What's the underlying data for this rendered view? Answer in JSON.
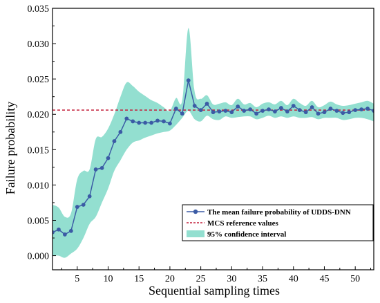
{
  "chart_data": {
    "type": "line",
    "title": "",
    "xlabel": "Sequential sampling times",
    "ylabel": "Failure probability",
    "xlim": [
      1,
      53
    ],
    "ylim": [
      -0.002,
      0.035
    ],
    "xticks": [
      5,
      10,
      15,
      20,
      25,
      30,
      35,
      40,
      45,
      50
    ],
    "xtick_labels": [
      "5",
      "10",
      "15",
      "20",
      "25",
      "30",
      "35",
      "40",
      "45",
      "50"
    ],
    "yticks": [
      0.0,
      0.005,
      0.01,
      0.015,
      0.02,
      0.025,
      0.03,
      0.035
    ],
    "ytick_labels": [
      "0.000",
      "0.005",
      "0.010",
      "0.015",
      "0.020",
      "0.025",
      "0.030",
      "0.035"
    ],
    "grid": false,
    "legend_position": "bottom-right",
    "reference": {
      "name": "MCS reference values",
      "value": 0.0206,
      "color": "#c41e3a"
    },
    "series": [
      {
        "name": "The mean failure probability of UDDS-DNN",
        "color": "#3b5ba5",
        "x": [
          1,
          2,
          3,
          4,
          5,
          6,
          7,
          8,
          9,
          10,
          11,
          12,
          13,
          14,
          15,
          16,
          17,
          18,
          19,
          20,
          21,
          22,
          23,
          24,
          25,
          26,
          27,
          28,
          29,
          30,
          31,
          32,
          33,
          34,
          35,
          36,
          37,
          38,
          39,
          40,
          41,
          42,
          43,
          44,
          45,
          46,
          47,
          48,
          49,
          50,
          51,
          52,
          53
        ],
        "y": [
          0.0033,
          0.0037,
          0.003,
          0.0035,
          0.0069,
          0.0072,
          0.0084,
          0.0122,
          0.0124,
          0.0138,
          0.0162,
          0.0175,
          0.0194,
          0.019,
          0.0188,
          0.0188,
          0.0188,
          0.0191,
          0.019,
          0.0187,
          0.0208,
          0.0201,
          0.0248,
          0.0212,
          0.0206,
          0.0215,
          0.0203,
          0.0204,
          0.0205,
          0.0203,
          0.0211,
          0.0205,
          0.0207,
          0.0201,
          0.0205,
          0.0207,
          0.0204,
          0.0209,
          0.0204,
          0.0212,
          0.0206,
          0.0203,
          0.021,
          0.0201,
          0.0203,
          0.0208,
          0.0205,
          0.0202,
          0.0203,
          0.0206,
          0.0207,
          0.0208,
          0.0205
        ]
      }
    ],
    "band": {
      "name": "95% confidence interval",
      "color": "#93dfd0",
      "x": [
        1,
        2,
        3,
        4,
        5,
        6,
        7,
        8,
        9,
        10,
        11,
        12,
        13,
        14,
        15,
        16,
        17,
        18,
        19,
        20,
        21,
        22,
        23,
        24,
        25,
        26,
        27,
        28,
        29,
        30,
        31,
        32,
        33,
        34,
        35,
        36,
        37,
        38,
        39,
        40,
        41,
        42,
        43,
        44,
        45,
        46,
        47,
        48,
        49,
        50,
        51,
        52,
        53
      ],
      "lower": [
        0.0,
        0.0,
        -0.0003,
        0.0003,
        0.001,
        0.0025,
        0.0045,
        0.0055,
        0.0075,
        0.0095,
        0.012,
        0.0135,
        0.015,
        0.016,
        0.0163,
        0.0167,
        0.017,
        0.0173,
        0.0175,
        0.0177,
        0.0185,
        0.0195,
        0.0205,
        0.0193,
        0.019,
        0.0198,
        0.0193,
        0.0192,
        0.0197,
        0.0195,
        0.0196,
        0.0197,
        0.0197,
        0.0193,
        0.0195,
        0.0198,
        0.0195,
        0.0197,
        0.0195,
        0.0197,
        0.0195,
        0.0195,
        0.0196,
        0.0193,
        0.0195,
        0.0195,
        0.0195,
        0.0192,
        0.0193,
        0.0195,
        0.0195,
        0.0193,
        0.019
      ],
      "upper": [
        0.0072,
        0.0068,
        0.0055,
        0.006,
        0.0108,
        0.012,
        0.0122,
        0.0165,
        0.0168,
        0.018,
        0.02,
        0.0225,
        0.0245,
        0.024,
        0.0232,
        0.0226,
        0.022,
        0.0216,
        0.021,
        0.0205,
        0.0223,
        0.022,
        0.0322,
        0.0232,
        0.0222,
        0.0227,
        0.0214,
        0.0215,
        0.0217,
        0.0213,
        0.0222,
        0.0214,
        0.0216,
        0.021,
        0.0215,
        0.0217,
        0.0214,
        0.0219,
        0.0213,
        0.0222,
        0.0216,
        0.0212,
        0.0219,
        0.021,
        0.0213,
        0.0218,
        0.0214,
        0.0212,
        0.0213,
        0.0215,
        0.0217,
        0.0219,
        0.0215
      ]
    }
  }
}
